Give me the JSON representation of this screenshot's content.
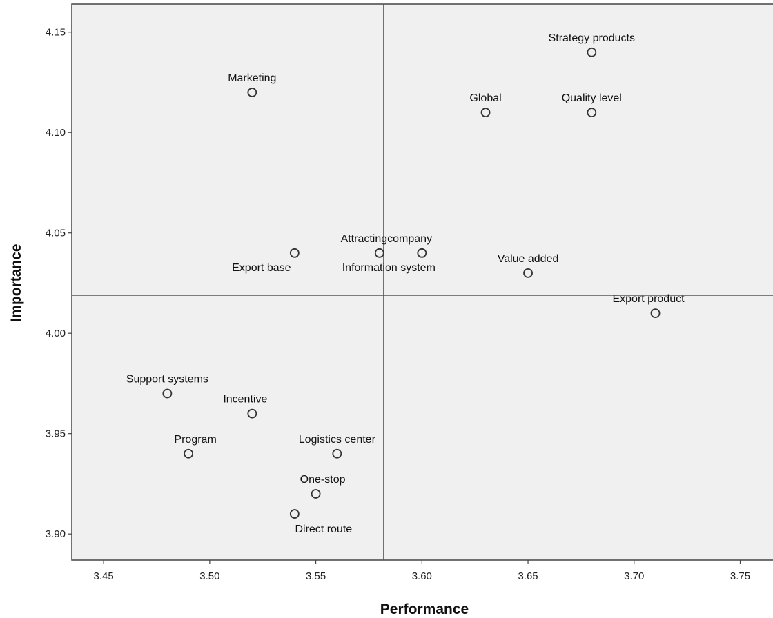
{
  "chart_data": {
    "type": "scatter",
    "title": "",
    "xlabel": "Performance",
    "ylabel": "Importance",
    "xlim": [
      3.435,
      3.77
    ],
    "ylim": [
      3.887,
      4.164
    ],
    "grid": false,
    "x_ticks": [
      "3.45",
      "3.50",
      "3.55",
      "3.60",
      "3.65",
      "3.70",
      "3.75"
    ],
    "y_ticks": [
      "3.90",
      "3.95",
      "4.00",
      "4.05",
      "4.10",
      "4.15"
    ],
    "reference_lines": {
      "x": 3.582,
      "y": 4.019
    },
    "points": [
      {
        "label": "Strategy products",
        "x": 3.68,
        "y": 4.14,
        "label_pos": "above"
      },
      {
        "label": "Marketing",
        "x": 3.52,
        "y": 4.12,
        "label_pos": "above"
      },
      {
        "label": "Global",
        "x": 3.63,
        "y": 4.11,
        "label_pos": "above"
      },
      {
        "label": "Quality level",
        "x": 3.68,
        "y": 4.11,
        "label_pos": "above"
      },
      {
        "label": "Export base",
        "x": 3.54,
        "y": 4.04,
        "label_pos": "below-left"
      },
      {
        "label": "Attractingcompany",
        "x": 3.58,
        "y": 4.04,
        "label_pos": "above-right"
      },
      {
        "label": "Information system",
        "x": 3.6,
        "y": 4.04,
        "label_pos": "below-left"
      },
      {
        "label": "Value added",
        "x": 3.65,
        "y": 4.03,
        "label_pos": "above"
      },
      {
        "label": "Export product",
        "x": 3.71,
        "y": 4.01,
        "label_pos": "above-left"
      },
      {
        "label": "Support systems",
        "x": 3.48,
        "y": 3.97,
        "label_pos": "above"
      },
      {
        "label": "Incentive",
        "x": 3.52,
        "y": 3.96,
        "label_pos": "above-left"
      },
      {
        "label": "Program",
        "x": 3.49,
        "y": 3.94,
        "label_pos": "above-right"
      },
      {
        "label": "Logistics center",
        "x": 3.56,
        "y": 3.94,
        "label_pos": "above"
      },
      {
        "label": "One-stop",
        "x": 3.55,
        "y": 3.92,
        "label_pos": "above-right"
      },
      {
        "label": "Direct route",
        "x": 3.54,
        "y": 3.91,
        "label_pos": "below-right"
      }
    ]
  }
}
